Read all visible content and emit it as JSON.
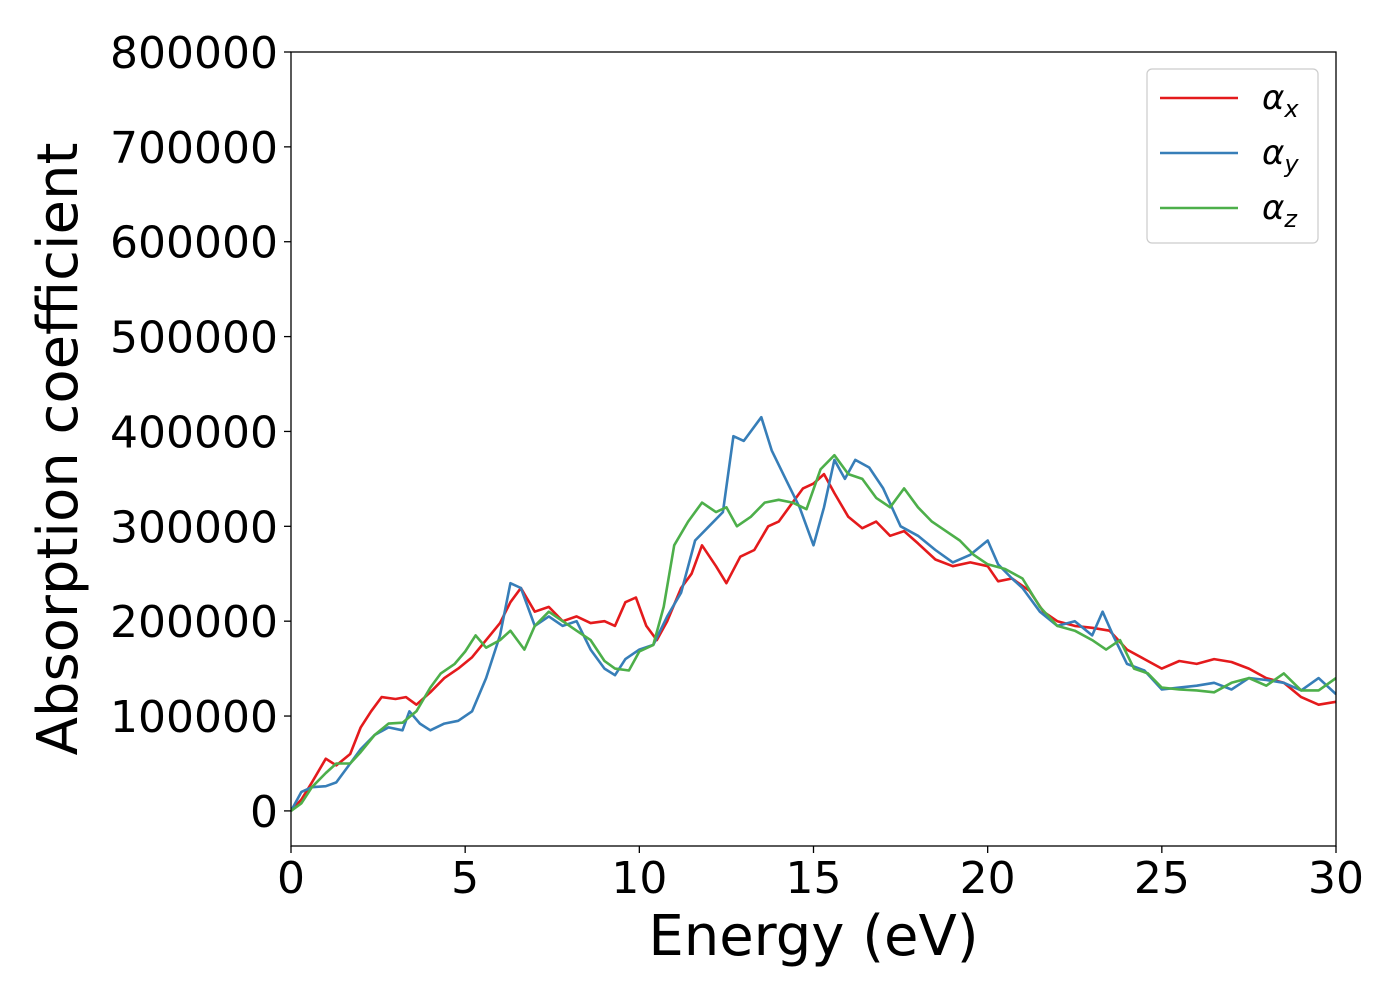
{
  "chart_data": {
    "type": "line",
    "title": "",
    "xlabel": "Energy (eV)",
    "ylabel": "Absorption coefficient",
    "xlim": [
      0,
      30
    ],
    "ylim": [
      -37000,
      800000
    ],
    "xticks": [
      0,
      5,
      10,
      15,
      20,
      25,
      30
    ],
    "xtick_labels": [
      "0",
      "5",
      "10",
      "15",
      "20",
      "25",
      "30"
    ],
    "yticks": [
      0,
      100000,
      200000,
      300000,
      400000,
      500000,
      600000,
      700000,
      800000
    ],
    "ytick_labels": [
      "0",
      "100000",
      "200000",
      "300000",
      "400000",
      "500000",
      "600000",
      "700000",
      "800000"
    ],
    "grid": false,
    "legend_position": "top-right",
    "series": [
      {
        "name": "αx",
        "symbol": "α",
        "subscript": "x",
        "color": "#e41a1c",
        "points": [
          [
            0,
            0
          ],
          [
            0.3,
            12000
          ],
          [
            0.6,
            30000
          ],
          [
            1.0,
            55000
          ],
          [
            1.3,
            48000
          ],
          [
            1.7,
            60000
          ],
          [
            2.0,
            88000
          ],
          [
            2.3,
            105000
          ],
          [
            2.6,
            120000
          ],
          [
            3.0,
            118000
          ],
          [
            3.3,
            120000
          ],
          [
            3.6,
            112000
          ],
          [
            4.0,
            125000
          ],
          [
            4.4,
            140000
          ],
          [
            4.8,
            150000
          ],
          [
            5.2,
            162000
          ],
          [
            5.6,
            180000
          ],
          [
            6.0,
            198000
          ],
          [
            6.3,
            220000
          ],
          [
            6.6,
            235000
          ],
          [
            7.0,
            210000
          ],
          [
            7.4,
            215000
          ],
          [
            7.8,
            200000
          ],
          [
            8.2,
            205000
          ],
          [
            8.6,
            198000
          ],
          [
            9.0,
            200000
          ],
          [
            9.3,
            195000
          ],
          [
            9.6,
            220000
          ],
          [
            9.9,
            225000
          ],
          [
            10.2,
            195000
          ],
          [
            10.5,
            180000
          ],
          [
            10.8,
            200000
          ],
          [
            11.2,
            235000
          ],
          [
            11.5,
            250000
          ],
          [
            11.8,
            280000
          ],
          [
            12.2,
            258000
          ],
          [
            12.5,
            240000
          ],
          [
            12.9,
            268000
          ],
          [
            13.3,
            275000
          ],
          [
            13.7,
            300000
          ],
          [
            14.0,
            305000
          ],
          [
            14.3,
            320000
          ],
          [
            14.7,
            340000
          ],
          [
            15.0,
            345000
          ],
          [
            15.3,
            355000
          ],
          [
            15.6,
            335000
          ],
          [
            16.0,
            310000
          ],
          [
            16.4,
            298000
          ],
          [
            16.8,
            305000
          ],
          [
            17.2,
            290000
          ],
          [
            17.6,
            295000
          ],
          [
            18.0,
            282000
          ],
          [
            18.5,
            265000
          ],
          [
            19.0,
            258000
          ],
          [
            19.5,
            262000
          ],
          [
            20.0,
            258000
          ],
          [
            20.3,
            242000
          ],
          [
            20.7,
            245000
          ],
          [
            21.2,
            232000
          ],
          [
            21.6,
            210000
          ],
          [
            22.0,
            200000
          ],
          [
            22.5,
            195000
          ],
          [
            23.0,
            193000
          ],
          [
            23.5,
            190000
          ],
          [
            24.0,
            170000
          ],
          [
            24.5,
            160000
          ],
          [
            25.0,
            150000
          ],
          [
            25.5,
            158000
          ],
          [
            26.0,
            155000
          ],
          [
            26.5,
            160000
          ],
          [
            27.0,
            157000
          ],
          [
            27.5,
            150000
          ],
          [
            28.0,
            140000
          ],
          [
            28.5,
            135000
          ],
          [
            29.0,
            120000
          ],
          [
            29.5,
            112000
          ],
          [
            30.0,
            115000
          ]
        ]
      },
      {
        "name": "αy",
        "symbol": "α",
        "subscript": "y",
        "color": "#377eb8",
        "points": [
          [
            0,
            0
          ],
          [
            0.3,
            20000
          ],
          [
            0.6,
            25000
          ],
          [
            1.0,
            26000
          ],
          [
            1.3,
            30000
          ],
          [
            1.7,
            50000
          ],
          [
            2.0,
            65000
          ],
          [
            2.4,
            80000
          ],
          [
            2.8,
            88000
          ],
          [
            3.2,
            85000
          ],
          [
            3.4,
            105000
          ],
          [
            3.7,
            92000
          ],
          [
            4.0,
            85000
          ],
          [
            4.4,
            92000
          ],
          [
            4.8,
            95000
          ],
          [
            5.2,
            105000
          ],
          [
            5.6,
            140000
          ],
          [
            6.0,
            185000
          ],
          [
            6.3,
            240000
          ],
          [
            6.6,
            235000
          ],
          [
            7.0,
            195000
          ],
          [
            7.4,
            205000
          ],
          [
            7.8,
            195000
          ],
          [
            8.2,
            200000
          ],
          [
            8.6,
            170000
          ],
          [
            9.0,
            150000
          ],
          [
            9.3,
            143000
          ],
          [
            9.6,
            160000
          ],
          [
            10.0,
            170000
          ],
          [
            10.4,
            175000
          ],
          [
            10.8,
            205000
          ],
          [
            11.2,
            230000
          ],
          [
            11.6,
            285000
          ],
          [
            12.0,
            300000
          ],
          [
            12.4,
            315000
          ],
          [
            12.7,
            395000
          ],
          [
            13.0,
            390000
          ],
          [
            13.5,
            415000
          ],
          [
            13.8,
            380000
          ],
          [
            14.2,
            350000
          ],
          [
            14.6,
            320000
          ],
          [
            15.0,
            280000
          ],
          [
            15.3,
            320000
          ],
          [
            15.6,
            370000
          ],
          [
            15.9,
            350000
          ],
          [
            16.2,
            370000
          ],
          [
            16.6,
            362000
          ],
          [
            17.0,
            340000
          ],
          [
            17.5,
            300000
          ],
          [
            18.0,
            290000
          ],
          [
            18.5,
            275000
          ],
          [
            19.0,
            262000
          ],
          [
            19.5,
            270000
          ],
          [
            20.0,
            285000
          ],
          [
            20.3,
            260000
          ],
          [
            20.7,
            245000
          ],
          [
            21.0,
            235000
          ],
          [
            21.5,
            210000
          ],
          [
            22.0,
            195000
          ],
          [
            22.5,
            200000
          ],
          [
            23.0,
            185000
          ],
          [
            23.3,
            210000
          ],
          [
            23.6,
            185000
          ],
          [
            24.0,
            155000
          ],
          [
            24.5,
            148000
          ],
          [
            25.0,
            128000
          ],
          [
            25.5,
            130000
          ],
          [
            26.0,
            132000
          ],
          [
            26.5,
            135000
          ],
          [
            27.0,
            128000
          ],
          [
            27.5,
            140000
          ],
          [
            28.0,
            138000
          ],
          [
            28.5,
            135000
          ],
          [
            29.0,
            127000
          ],
          [
            29.5,
            140000
          ],
          [
            30.0,
            123000
          ]
        ]
      },
      {
        "name": "αz",
        "symbol": "α",
        "subscript": "z",
        "color": "#4daf4a",
        "points": [
          [
            0,
            0
          ],
          [
            0.3,
            8000
          ],
          [
            0.6,
            25000
          ],
          [
            1.0,
            40000
          ],
          [
            1.3,
            50000
          ],
          [
            1.7,
            50000
          ],
          [
            2.0,
            62000
          ],
          [
            2.4,
            80000
          ],
          [
            2.8,
            92000
          ],
          [
            3.2,
            93000
          ],
          [
            3.6,
            105000
          ],
          [
            4.0,
            130000
          ],
          [
            4.3,
            145000
          ],
          [
            4.7,
            155000
          ],
          [
            5.0,
            168000
          ],
          [
            5.3,
            185000
          ],
          [
            5.6,
            172000
          ],
          [
            6.0,
            180000
          ],
          [
            6.3,
            190000
          ],
          [
            6.7,
            170000
          ],
          [
            7.0,
            195000
          ],
          [
            7.4,
            210000
          ],
          [
            7.8,
            200000
          ],
          [
            8.2,
            190000
          ],
          [
            8.6,
            180000
          ],
          [
            9.0,
            158000
          ],
          [
            9.3,
            150000
          ],
          [
            9.7,
            148000
          ],
          [
            10.0,
            168000
          ],
          [
            10.4,
            175000
          ],
          [
            10.7,
            215000
          ],
          [
            11.0,
            280000
          ],
          [
            11.4,
            305000
          ],
          [
            11.8,
            325000
          ],
          [
            12.2,
            315000
          ],
          [
            12.5,
            320000
          ],
          [
            12.8,
            300000
          ],
          [
            13.2,
            310000
          ],
          [
            13.6,
            325000
          ],
          [
            14.0,
            328000
          ],
          [
            14.4,
            325000
          ],
          [
            14.8,
            318000
          ],
          [
            15.2,
            360000
          ],
          [
            15.6,
            375000
          ],
          [
            16.0,
            355000
          ],
          [
            16.4,
            350000
          ],
          [
            16.8,
            330000
          ],
          [
            17.2,
            320000
          ],
          [
            17.6,
            340000
          ],
          [
            18.0,
            320000
          ],
          [
            18.4,
            305000
          ],
          [
            18.8,
            295000
          ],
          [
            19.2,
            285000
          ],
          [
            19.6,
            270000
          ],
          [
            20.0,
            260000
          ],
          [
            20.5,
            255000
          ],
          [
            21.0,
            245000
          ],
          [
            21.5,
            215000
          ],
          [
            22.0,
            195000
          ],
          [
            22.5,
            190000
          ],
          [
            23.0,
            180000
          ],
          [
            23.4,
            170000
          ],
          [
            23.8,
            180000
          ],
          [
            24.2,
            150000
          ],
          [
            24.6,
            145000
          ],
          [
            25.0,
            130000
          ],
          [
            25.5,
            128000
          ],
          [
            26.0,
            127000
          ],
          [
            26.5,
            125000
          ],
          [
            27.0,
            135000
          ],
          [
            27.5,
            140000
          ],
          [
            28.0,
            132000
          ],
          [
            28.5,
            145000
          ],
          [
            29.0,
            127000
          ],
          [
            29.5,
            127000
          ],
          [
            30.0,
            140000
          ]
        ]
      }
    ]
  }
}
